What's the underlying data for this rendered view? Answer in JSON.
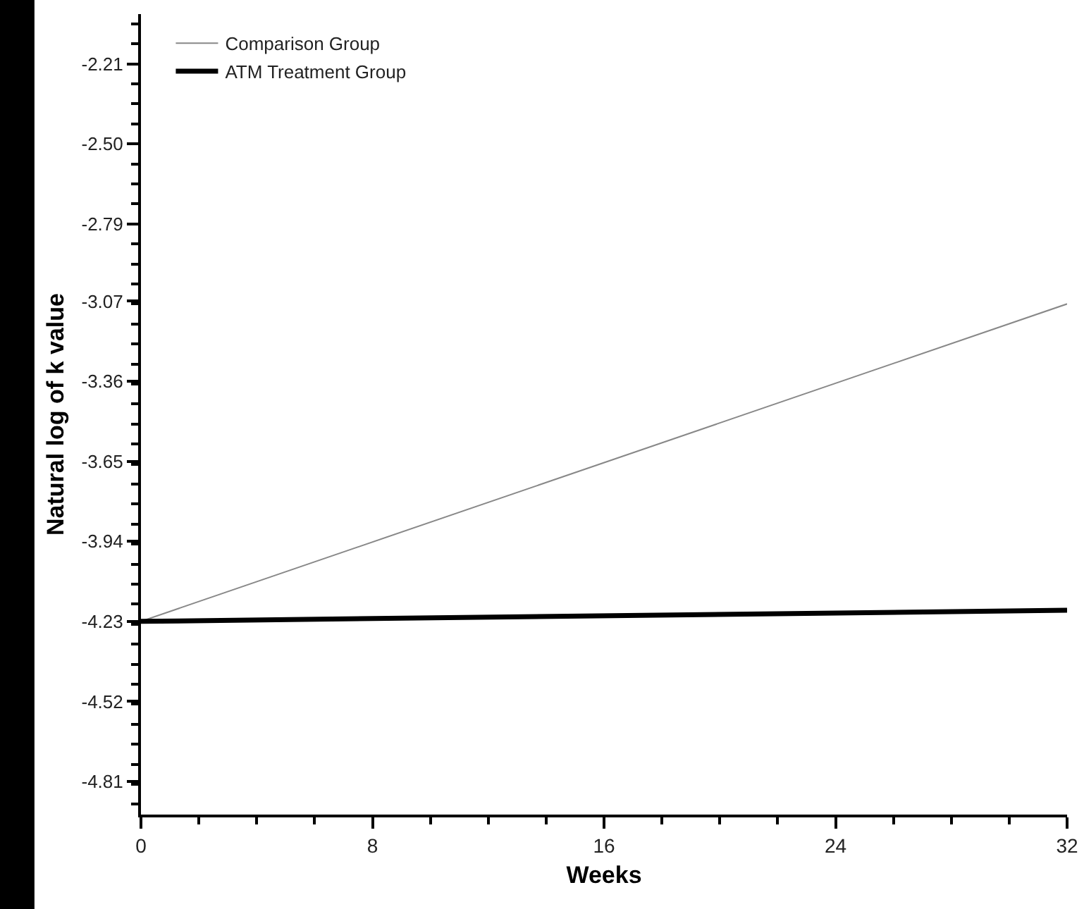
{
  "chart_data": {
    "type": "line",
    "xlabel": "Weeks",
    "ylabel": "Natural log of k value",
    "x": [
      0,
      32
    ],
    "series": [
      {
        "name": "Comparison Group",
        "color": "#888888",
        "values": [
          -4.23,
          -3.08
        ]
      },
      {
        "name": "ATM Treatment Group",
        "color": "#000000",
        "values": [
          -4.23,
          -4.19
        ]
      }
    ],
    "xlim": [
      0,
      32
    ],
    "xticks": [
      0,
      8,
      16,
      24,
      32
    ],
    "ylim": [
      -4.93,
      -2.03
    ],
    "yticks": [
      -4.81,
      -4.52,
      -4.23,
      -3.94,
      -3.65,
      -3.36,
      -3.07,
      -2.79,
      {
        "value": -2.5,
        "label": "-2.50"
      },
      -2.21
    ],
    "grid": false,
    "legend": "top left",
    "marker": "none",
    "line_style": "solid"
  }
}
